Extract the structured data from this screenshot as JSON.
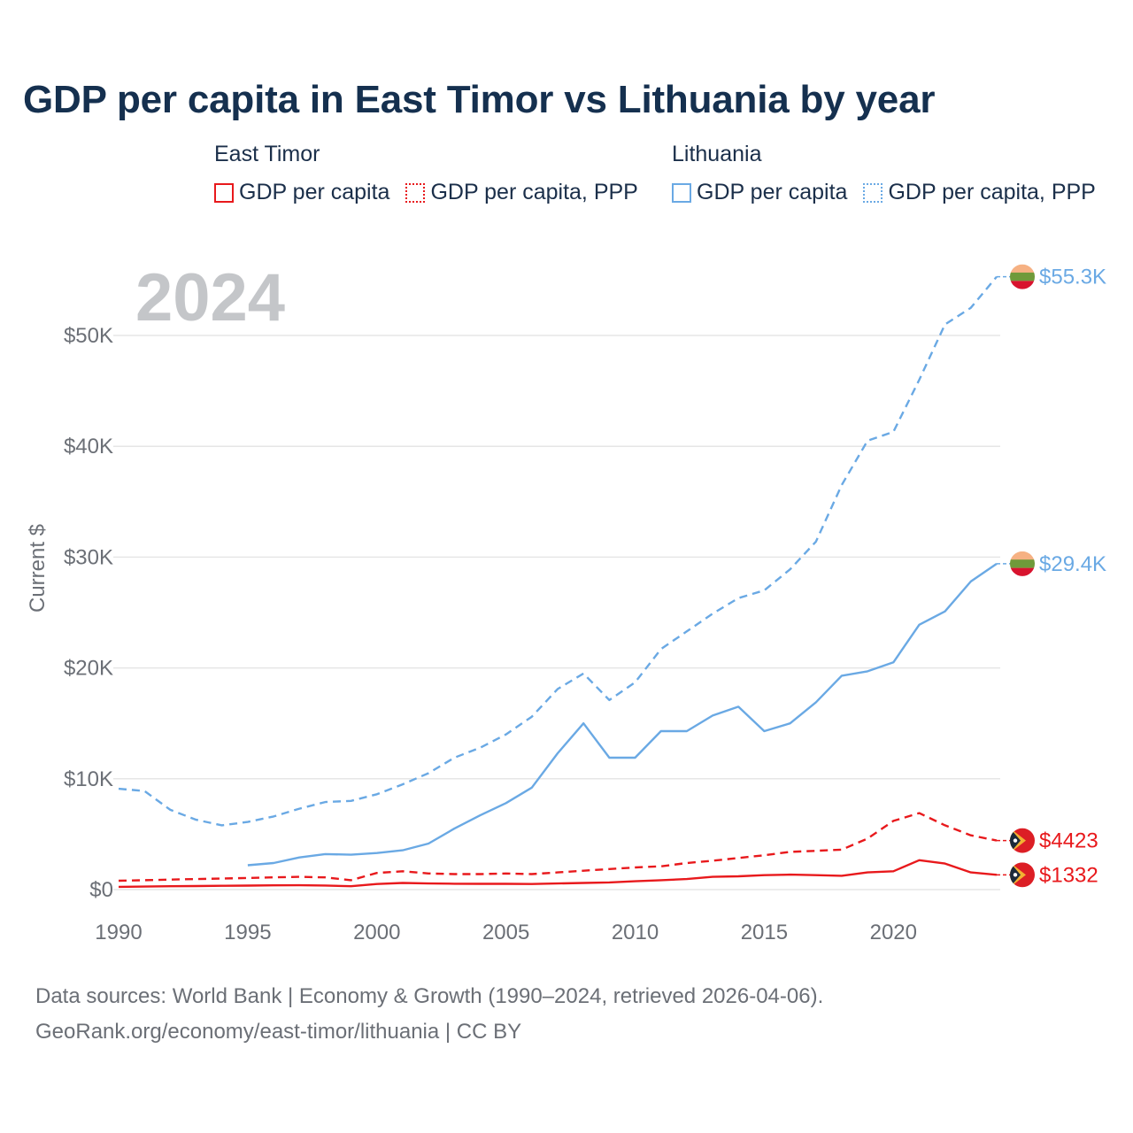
{
  "title": "GDP per capita in East Timor vs Lithuania by year",
  "legend": {
    "groups": [
      {
        "country": "East Timor",
        "items": [
          {
            "label": "GDP per capita",
            "style": "solid",
            "color": "#e8191c"
          },
          {
            "label": "GDP per capita, PPP",
            "style": "dotted",
            "color": "#e8191c"
          }
        ]
      },
      {
        "country": "Lithuania",
        "items": [
          {
            "label": "GDP per capita",
            "style": "solid",
            "color": "#6aa9e4"
          },
          {
            "label": "GDP per capita, PPP",
            "style": "dotted",
            "color": "#6aa9e4"
          }
        ]
      }
    ]
  },
  "year_label": "2024",
  "source_line1": "Data sources: World Bank | Economy & Growth (1990–2024, retrieved 2026-04-06).",
  "source_line2": "GeoRank.org/economy/east-timor/lithuania | CC BY",
  "colors": {
    "east_timor": "#e8191c",
    "lithuania": "#6aa9e4",
    "grid": "#e6e6e6",
    "axis_text": "#6b6f76",
    "year_watermark": "#c4c6c9"
  },
  "chart_data": {
    "type": "line",
    "title": "GDP per capita in East Timor vs Lithuania by year",
    "xlabel": "",
    "ylabel": "Current $",
    "xlim": [
      1990,
      2024
    ],
    "ylim": [
      0,
      55300
    ],
    "x_ticks": [
      1990,
      1995,
      2000,
      2005,
      2010,
      2015,
      2020
    ],
    "x_tick_labels": [
      "1990",
      "1995",
      "2000",
      "2005",
      "2010",
      "2015",
      "2020"
    ],
    "y_ticks": [
      0,
      10000,
      20000,
      30000,
      40000,
      50000
    ],
    "y_tick_labels": [
      "$0",
      "$10K",
      "$20K",
      "$30K",
      "$40K",
      "$50K"
    ],
    "grid": true,
    "series": [
      {
        "name": "Lithuania GDP per capita, PPP",
        "country": "Lithuania",
        "style": "dashed",
        "end_label": "$55.3K",
        "points": [
          [
            1990,
            9100
          ],
          [
            1991,
            8900
          ],
          [
            1992,
            7200
          ],
          [
            1993,
            6300
          ],
          [
            1994,
            5800
          ],
          [
            1995,
            6100
          ],
          [
            1996,
            6600
          ],
          [
            1997,
            7300
          ],
          [
            1998,
            7900
          ],
          [
            1999,
            8000
          ],
          [
            2000,
            8600
          ],
          [
            2001,
            9500
          ],
          [
            2002,
            10500
          ],
          [
            2003,
            11900
          ],
          [
            2004,
            12800
          ],
          [
            2005,
            14000
          ],
          [
            2006,
            15600
          ],
          [
            2007,
            18100
          ],
          [
            2008,
            19500
          ],
          [
            2009,
            17100
          ],
          [
            2010,
            18700
          ],
          [
            2011,
            21700
          ],
          [
            2012,
            23300
          ],
          [
            2013,
            24900
          ],
          [
            2014,
            26300
          ],
          [
            2015,
            27000
          ],
          [
            2016,
            28900
          ],
          [
            2017,
            31400
          ],
          [
            2018,
            36500
          ],
          [
            2019,
            40500
          ],
          [
            2020,
            41300
          ],
          [
            2021,
            46000
          ],
          [
            2022,
            51000
          ],
          [
            2023,
            52500
          ],
          [
            2024,
            55300
          ]
        ]
      },
      {
        "name": "Lithuania GDP per capita",
        "country": "Lithuania",
        "style": "solid",
        "end_label": "$29.4K",
        "points": [
          [
            1995,
            2200
          ],
          [
            1996,
            2400
          ],
          [
            1997,
            2900
          ],
          [
            1998,
            3200
          ],
          [
            1999,
            3150
          ],
          [
            2000,
            3300
          ],
          [
            2001,
            3550
          ],
          [
            2002,
            4150
          ],
          [
            2003,
            5500
          ],
          [
            2004,
            6700
          ],
          [
            2005,
            7800
          ],
          [
            2006,
            9200
          ],
          [
            2007,
            12300
          ],
          [
            2008,
            15000
          ],
          [
            2009,
            11900
          ],
          [
            2010,
            11900
          ],
          [
            2011,
            14300
          ],
          [
            2012,
            14300
          ],
          [
            2013,
            15700
          ],
          [
            2014,
            16500
          ],
          [
            2015,
            14300
          ],
          [
            2016,
            15000
          ],
          [
            2017,
            16900
          ],
          [
            2018,
            19300
          ],
          [
            2019,
            19700
          ],
          [
            2020,
            20500
          ],
          [
            2021,
            23900
          ],
          [
            2022,
            25100
          ],
          [
            2023,
            27800
          ],
          [
            2024,
            29400
          ]
        ]
      },
      {
        "name": "East Timor GDP per capita, PPP",
        "country": "East Timor",
        "style": "dashed",
        "end_label": "$4423",
        "points": [
          [
            1990,
            800
          ],
          [
            1991,
            850
          ],
          [
            1992,
            900
          ],
          [
            1993,
            950
          ],
          [
            1994,
            1000
          ],
          [
            1995,
            1050
          ],
          [
            1996,
            1100
          ],
          [
            1997,
            1150
          ],
          [
            1998,
            1100
          ],
          [
            1999,
            850
          ],
          [
            2000,
            1500
          ],
          [
            2001,
            1650
          ],
          [
            2002,
            1450
          ],
          [
            2003,
            1400
          ],
          [
            2004,
            1400
          ],
          [
            2005,
            1450
          ],
          [
            2006,
            1400
          ],
          [
            2007,
            1550
          ],
          [
            2008,
            1700
          ],
          [
            2009,
            1850
          ],
          [
            2010,
            2000
          ],
          [
            2011,
            2100
          ],
          [
            2012,
            2400
          ],
          [
            2013,
            2600
          ],
          [
            2014,
            2850
          ],
          [
            2015,
            3100
          ],
          [
            2016,
            3400
          ],
          [
            2017,
            3500
          ],
          [
            2018,
            3600
          ],
          [
            2019,
            4600
          ],
          [
            2020,
            6200
          ],
          [
            2021,
            6900
          ],
          [
            2022,
            5800
          ],
          [
            2023,
            4900
          ],
          [
            2024,
            4423
          ]
        ]
      },
      {
        "name": "East Timor GDP per capita",
        "country": "East Timor",
        "style": "solid",
        "end_label": "$1332",
        "points": [
          [
            1990,
            250
          ],
          [
            1991,
            270
          ],
          [
            1992,
            300
          ],
          [
            1993,
            320
          ],
          [
            1994,
            340
          ],
          [
            1995,
            360
          ],
          [
            1996,
            380
          ],
          [
            1997,
            390
          ],
          [
            1998,
            370
          ],
          [
            1999,
            300
          ],
          [
            2000,
            500
          ],
          [
            2001,
            600
          ],
          [
            2002,
            550
          ],
          [
            2003,
            530
          ],
          [
            2004,
            520
          ],
          [
            2005,
            520
          ],
          [
            2006,
            500
          ],
          [
            2007,
            550
          ],
          [
            2008,
            600
          ],
          [
            2009,
            650
          ],
          [
            2010,
            750
          ],
          [
            2011,
            850
          ],
          [
            2012,
            950
          ],
          [
            2013,
            1150
          ],
          [
            2014,
            1200
          ],
          [
            2015,
            1300
          ],
          [
            2016,
            1350
          ],
          [
            2017,
            1300
          ],
          [
            2018,
            1250
          ],
          [
            2019,
            1550
          ],
          [
            2020,
            1650
          ],
          [
            2021,
            2650
          ],
          [
            2022,
            2350
          ],
          [
            2023,
            1550
          ],
          [
            2024,
            1332
          ]
        ]
      }
    ]
  }
}
